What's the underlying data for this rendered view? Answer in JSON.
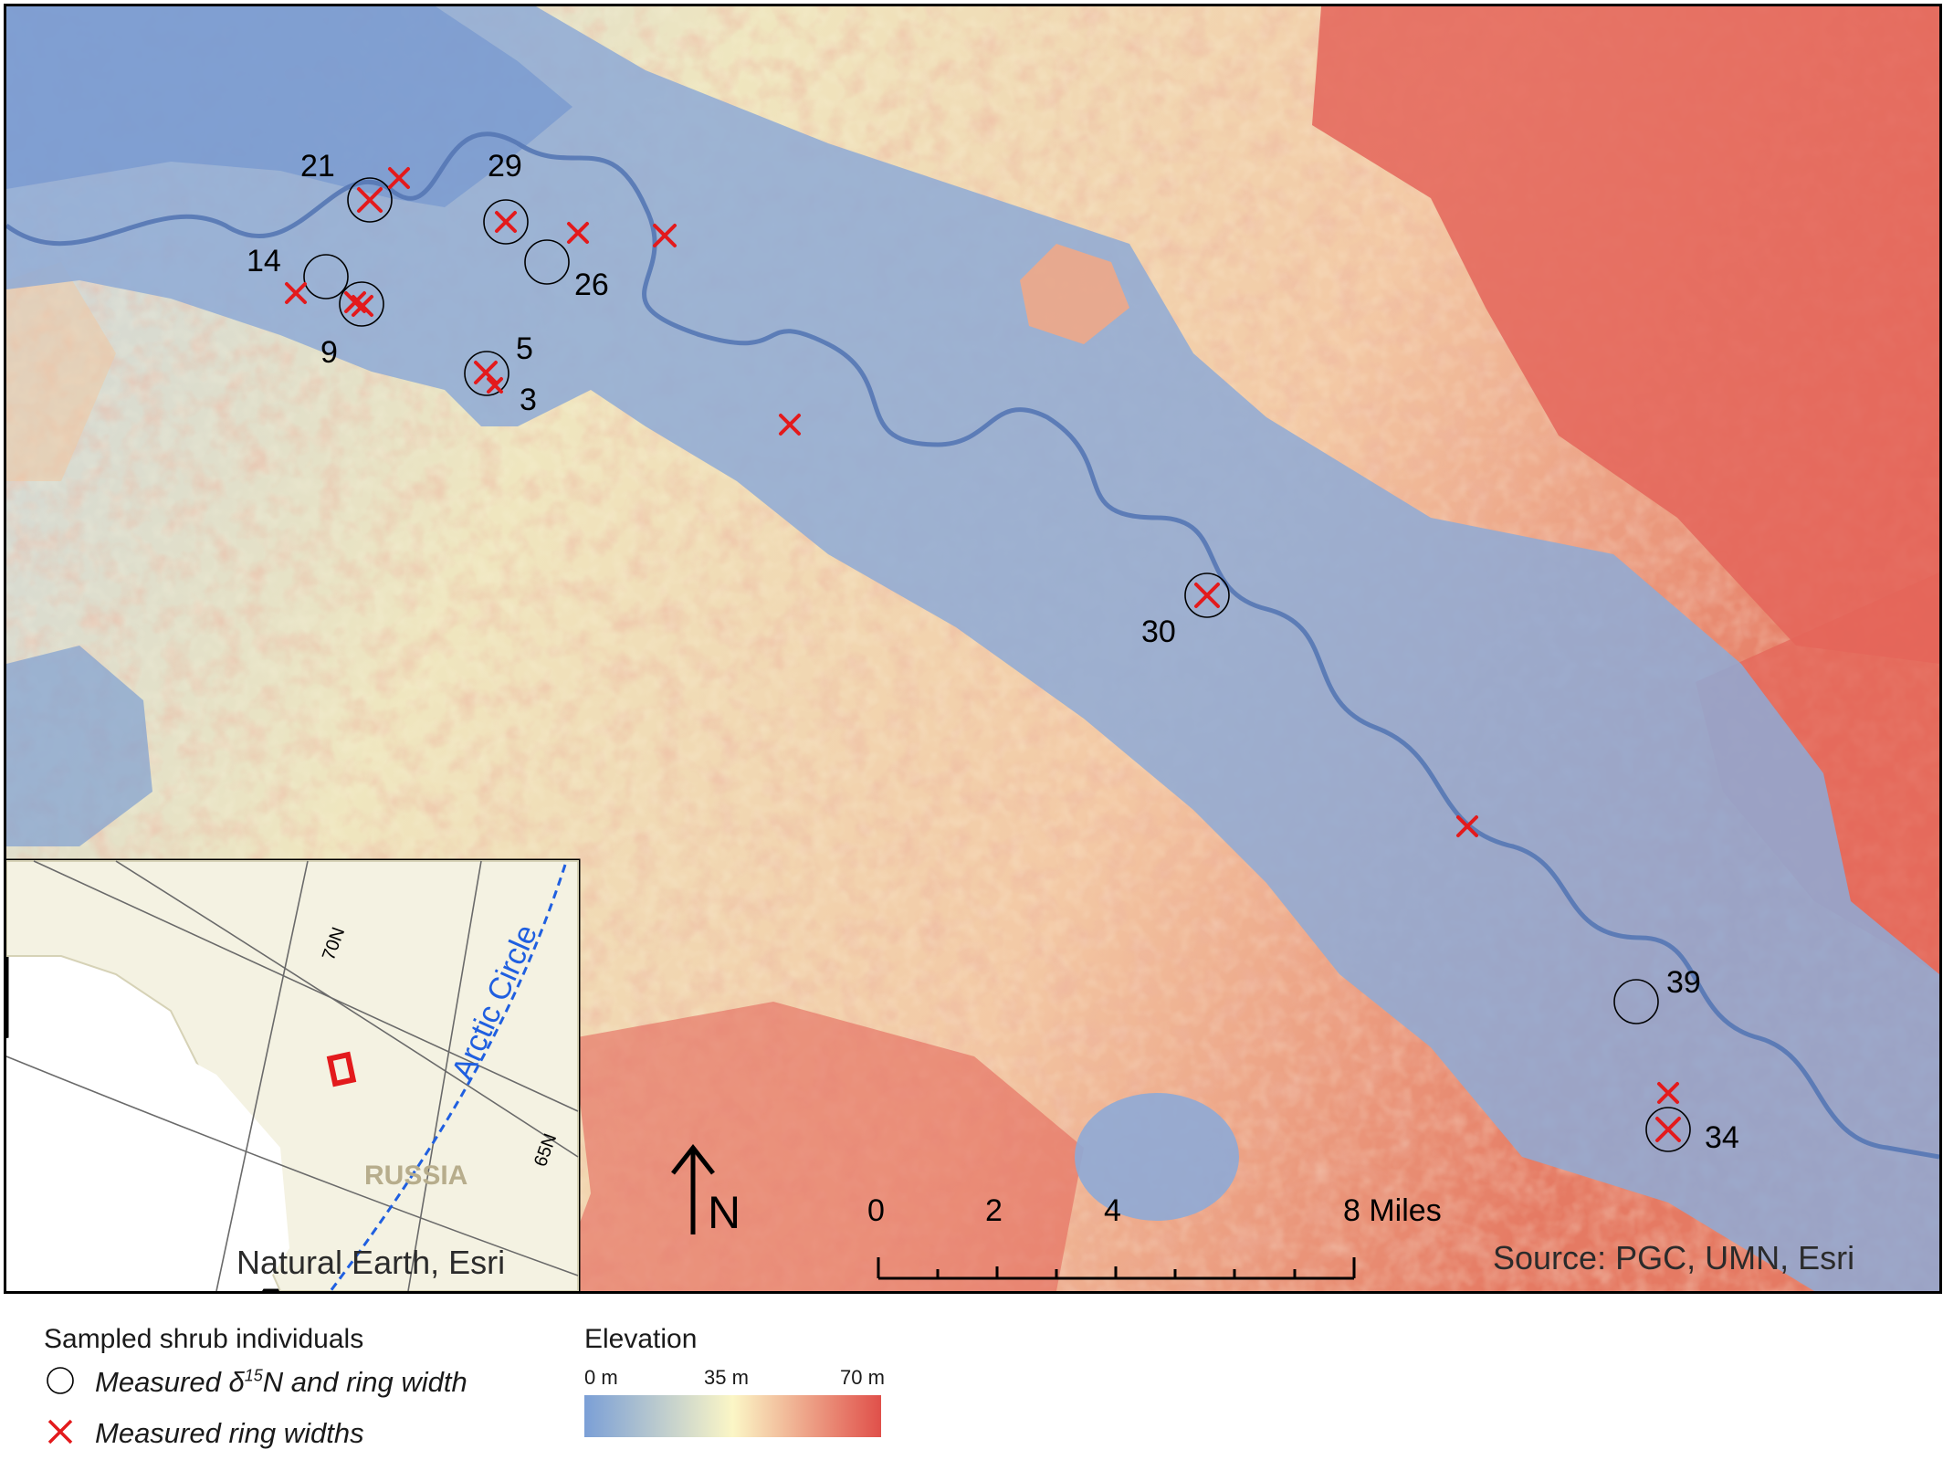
{
  "map": {
    "north_label": "N",
    "source_credit": "Source: PGC, UMN, Esri",
    "scalebar": {
      "ticks": [
        "0",
        "2",
        "4",
        "8 Miles"
      ]
    },
    "sites": [
      {
        "id": "21",
        "label": "21",
        "circle": true,
        "cross": true
      },
      {
        "id": "29",
        "label": "29",
        "circle": true,
        "cross": true
      },
      {
        "id": "14",
        "label": "14",
        "circle": true,
        "cross": false
      },
      {
        "id": "26",
        "label": "26",
        "circle": true,
        "cross": false
      },
      {
        "id": "9",
        "label": "9",
        "circle": true,
        "cross": true
      },
      {
        "id": "5",
        "label": "5",
        "circle": true,
        "cross": true
      },
      {
        "id": "3",
        "label": "3",
        "circle": false,
        "cross": true
      },
      {
        "id": "30",
        "label": "30",
        "circle": true,
        "cross": true
      },
      {
        "id": "39",
        "label": "39",
        "circle": true,
        "cross": false
      },
      {
        "id": "34",
        "label": "34",
        "circle": true,
        "cross": true
      }
    ]
  },
  "inset": {
    "credit": "Natural Earth, Esri",
    "country_label": "RUSSIA",
    "arctic_circle_label": "Arctic Circle",
    "lat_labels": [
      "70N",
      "65N"
    ]
  },
  "legend": {
    "samples_title": "Sampled shrub individuals",
    "circle_item_prefix": "Measured",
    "delta_symbol": "δ",
    "isotope_sup": "15",
    "circle_item_suffix": "N and ring width",
    "cross_item": "Measured ring widths",
    "elevation_title": "Elevation",
    "elevation_ticks": [
      "0 m",
      "35 m",
      "70 m"
    ]
  },
  "colors": {
    "low": "#7b9fd6",
    "mid": "#fbf6c6",
    "high": "#e0504a",
    "marker_red": "#e31a1c",
    "arctic_blue": "#1f5fe0"
  }
}
